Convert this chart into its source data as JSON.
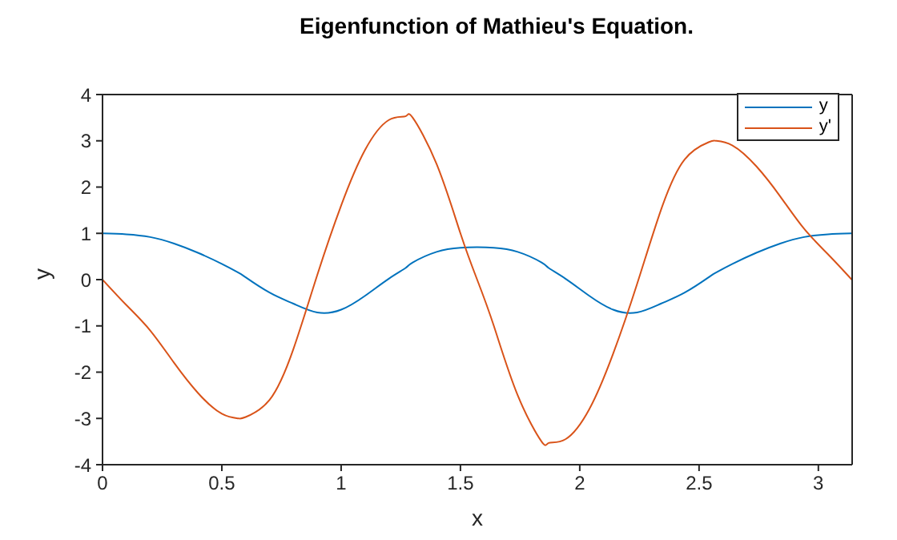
{
  "chart_data": {
    "type": "line",
    "title": "Eigenfunction of Mathieu's Equation.",
    "xlabel": "x",
    "ylabel": "y",
    "x": [
      0,
      0.1,
      0.2,
      0.3,
      0.4,
      0.5,
      0.57,
      0.6,
      0.7,
      0.8,
      0.9,
      1.0,
      1.1,
      1.2,
      1.27,
      1.3,
      1.4,
      1.5,
      1.57,
      1.64,
      1.74,
      1.84,
      1.87,
      1.94,
      2.04,
      2.14,
      2.24,
      2.34,
      2.44,
      2.54,
      2.57,
      2.64,
      2.74,
      2.84,
      2.94,
      3.04,
      3.14
    ],
    "series": [
      {
        "name": "y",
        "color": "#0072bd",
        "values": [
          1.0,
          0.98,
          0.92,
          0.78,
          0.58,
          0.34,
          0.15,
          0.05,
          -0.28,
          -0.52,
          -0.71,
          -0.65,
          -0.35,
          0.02,
          0.25,
          0.37,
          0.6,
          0.69,
          0.7,
          0.69,
          0.6,
          0.37,
          0.25,
          0.02,
          -0.35,
          -0.65,
          -0.71,
          -0.52,
          -0.28,
          0.05,
          0.15,
          0.34,
          0.58,
          0.78,
          0.92,
          0.98,
          1.0
        ]
      },
      {
        "name": "y'",
        "color": "#d95319",
        "values": [
          0,
          -0.55,
          -1.1,
          -1.8,
          -2.45,
          -2.9,
          -3.0,
          -2.97,
          -2.6,
          -1.5,
          0.1,
          1.6,
          2.8,
          3.45,
          3.53,
          3.5,
          2.5,
          1.0,
          0,
          -1.0,
          -2.5,
          -3.5,
          -3.53,
          -3.45,
          -2.8,
          -1.6,
          -0.1,
          1.5,
          2.6,
          2.97,
          3.0,
          2.9,
          2.45,
          1.8,
          1.1,
          0.55,
          0
        ]
      }
    ],
    "xlim": [
      0,
      3.1416
    ],
    "xticks": [
      0,
      0.5,
      1,
      1.5,
      2,
      2.5,
      3
    ],
    "ylim": [
      -4,
      4
    ],
    "yticks": [
      -4,
      -3,
      -2,
      -1,
      0,
      1,
      2,
      3,
      4
    ],
    "legend": "top right",
    "grid": false,
    "marker": "none",
    "line_style": "solid"
  }
}
